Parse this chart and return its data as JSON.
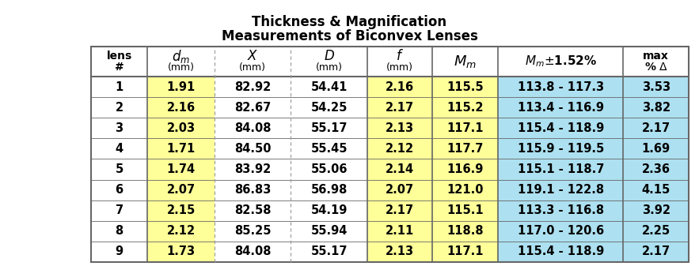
{
  "title_line1": "Thickness & Magnification",
  "title_line2": "Measurements of Biconvex Lenses",
  "rows": [
    [
      "1",
      "1.91",
      "82.92",
      "54.41",
      "2.16",
      "115.5",
      "113.8 - 117.3",
      "3.53"
    ],
    [
      "2",
      "2.16",
      "82.67",
      "54.25",
      "2.17",
      "115.2",
      "113.4 - 116.9",
      "3.82"
    ],
    [
      "3",
      "2.03",
      "84.08",
      "55.17",
      "2.13",
      "117.1",
      "115.4 - 118.9",
      "2.17"
    ],
    [
      "4",
      "1.71",
      "84.50",
      "55.45",
      "2.12",
      "117.7",
      "115.9 - 119.5",
      "1.69"
    ],
    [
      "5",
      "1.74",
      "83.92",
      "55.06",
      "2.14",
      "116.9",
      "115.1 - 118.7",
      "2.36"
    ],
    [
      "6",
      "2.07",
      "86.83",
      "56.98",
      "2.07",
      "121.0",
      "119.1 - 122.8",
      "4.15"
    ],
    [
      "7",
      "2.15",
      "82.58",
      "54.19",
      "2.17",
      "115.1",
      "113.3 - 116.8",
      "3.92"
    ],
    [
      "8",
      "2.12",
      "85.25",
      "55.94",
      "2.11",
      "118.8",
      "117.0 - 120.6",
      "2.25"
    ],
    [
      "9",
      "1.73",
      "84.08",
      "55.17",
      "2.13",
      "117.1",
      "115.4 - 118.9",
      "2.17"
    ]
  ],
  "color_white": "#FFFFFF",
  "color_yellow": "#FFFF99",
  "color_blue": "#ADE0F0",
  "color_header_bg": "#FFFFFF",
  "col_colors": [
    "white",
    "yellow",
    "white",
    "white",
    "yellow",
    "yellow",
    "blue",
    "blue"
  ],
  "title_fontsize": 12,
  "header_fontsize": 10,
  "data_fontsize": 10.5,
  "border_color": "#666666",
  "dashed_color": "#999999"
}
